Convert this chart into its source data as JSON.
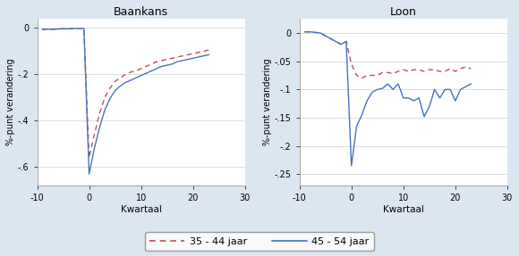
{
  "title_left": "Baankans",
  "title_right": "Loon",
  "xlabel": "Kwartaal",
  "ylabel": "%-punt verandering",
  "background_color": "#dce6f0",
  "plot_bg_color": "#ffffff",
  "legend_labels": [
    "35 - 44 jaar",
    "45 - 54 jaar"
  ],
  "legend_colors": [
    "#c0504d",
    "#4472c4"
  ],
  "xlim": [
    -10,
    30
  ],
  "xticks": [
    -10,
    0,
    10,
    20,
    30
  ],
  "baankans_ylim": [
    -0.68,
    0.04
  ],
  "baankans_yticks": [
    0,
    -0.2,
    -0.4,
    -0.6
  ],
  "baankans_ytick_labels": [
    "0",
    "-.2",
    "-.4",
    "-.6"
  ],
  "loon_ylim": [
    -0.27,
    0.025
  ],
  "loon_yticks": [
    0,
    -0.05,
    -0.1,
    -0.15,
    -0.2,
    -0.25
  ],
  "loon_ytick_labels": [
    "0",
    "-.05",
    "-.1",
    "-.15",
    "-.2",
    "-.25"
  ],
  "baankans_x_young": [
    -9,
    -8,
    -7,
    -6,
    -5,
    -4,
    -3,
    -2,
    -1,
    0,
    1,
    2,
    3,
    4,
    5,
    6,
    7,
    8,
    9,
    10,
    11,
    12,
    13,
    14,
    15,
    16,
    17,
    18,
    19,
    20,
    21,
    22,
    23
  ],
  "baankans_y_young": [
    -0.005,
    -0.005,
    -0.005,
    -0.004,
    -0.003,
    -0.003,
    -0.002,
    -0.001,
    -0.001,
    -0.56,
    -0.46,
    -0.37,
    -0.3,
    -0.26,
    -0.23,
    -0.215,
    -0.2,
    -0.19,
    -0.185,
    -0.175,
    -0.165,
    -0.155,
    -0.145,
    -0.14,
    -0.135,
    -0.13,
    -0.125,
    -0.12,
    -0.115,
    -0.11,
    -0.105,
    -0.1,
    -0.095
  ],
  "baankans_x_old": [
    -9,
    -8,
    -7,
    -6,
    -5,
    -4,
    -3,
    -2,
    -1,
    0,
    1,
    2,
    3,
    4,
    5,
    6,
    7,
    8,
    9,
    10,
    11,
    12,
    13,
    14,
    15,
    16,
    17,
    18,
    19,
    20,
    21,
    22,
    23
  ],
  "baankans_y_old": [
    -0.005,
    -0.005,
    -0.005,
    -0.004,
    -0.003,
    -0.003,
    -0.002,
    -0.001,
    -0.001,
    -0.63,
    -0.52,
    -0.43,
    -0.355,
    -0.305,
    -0.27,
    -0.25,
    -0.235,
    -0.225,
    -0.215,
    -0.205,
    -0.195,
    -0.185,
    -0.175,
    -0.165,
    -0.16,
    -0.155,
    -0.145,
    -0.14,
    -0.135,
    -0.13,
    -0.125,
    -0.12,
    -0.115
  ],
  "loon_x_young": [
    -9,
    -8,
    -7,
    -6,
    -5,
    -4,
    -3,
    -2,
    -1,
    0,
    1,
    2,
    3,
    4,
    5,
    6,
    7,
    8,
    9,
    10,
    11,
    12,
    13,
    14,
    15,
    16,
    17,
    18,
    19,
    20,
    21,
    22,
    23
  ],
  "loon_y_young": [
    0.002,
    0.002,
    0.001,
    0.0,
    -0.005,
    -0.01,
    -0.015,
    -0.02,
    -0.015,
    -0.055,
    -0.075,
    -0.08,
    -0.075,
    -0.075,
    -0.075,
    -0.07,
    -0.07,
    -0.072,
    -0.068,
    -0.065,
    -0.068,
    -0.065,
    -0.065,
    -0.068,
    -0.065,
    -0.065,
    -0.068,
    -0.068,
    -0.063,
    -0.068,
    -0.063,
    -0.06,
    -0.063
  ],
  "loon_x_old": [
    -9,
    -8,
    -7,
    -6,
    -5,
    -4,
    -3,
    -2,
    -1,
    0,
    1,
    2,
    3,
    4,
    5,
    6,
    7,
    8,
    9,
    10,
    11,
    12,
    13,
    14,
    15,
    16,
    17,
    18,
    19,
    20,
    21,
    22,
    23
  ],
  "loon_y_old": [
    0.002,
    0.002,
    0.001,
    0.0,
    -0.005,
    -0.01,
    -0.015,
    -0.02,
    -0.015,
    -0.235,
    -0.165,
    -0.145,
    -0.12,
    -0.105,
    -0.1,
    -0.098,
    -0.09,
    -0.1,
    -0.09,
    -0.115,
    -0.115,
    -0.12,
    -0.115,
    -0.148,
    -0.13,
    -0.1,
    -0.115,
    -0.1,
    -0.1,
    -0.12,
    -0.1,
    -0.095,
    -0.09
  ]
}
